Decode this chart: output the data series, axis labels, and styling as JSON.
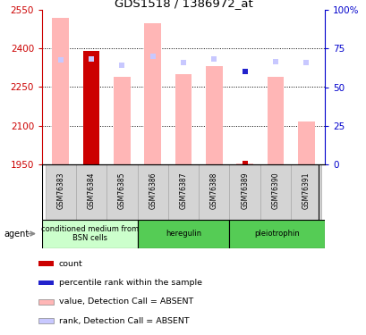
{
  "title": "GDS1518 / 1386972_at",
  "samples": [
    "GSM76383",
    "GSM76384",
    "GSM76385",
    "GSM76386",
    "GSM76387",
    "GSM76388",
    "GSM76389",
    "GSM76390",
    "GSM76391"
  ],
  "ylim": [
    1950,
    2550
  ],
  "yticks": [
    1950,
    2100,
    2250,
    2400,
    2550
  ],
  "y2lim": [
    0,
    100
  ],
  "y2ticks": [
    0,
    25,
    50,
    75,
    100
  ],
  "y2labels": [
    "0",
    "25",
    "50",
    "75",
    "100%"
  ],
  "bar_values": [
    2520,
    2390,
    2290,
    2500,
    2300,
    2330,
    1953,
    2290,
    2115
  ],
  "bar_colors": [
    "#ffb6b6",
    "#cc0000",
    "#ffb6b6",
    "#ffb6b6",
    "#ffb6b6",
    "#ffb6b6",
    "#ffb6b6",
    "#ffb6b6",
    "#ffb6b6"
  ],
  "rank_markers": [
    2355,
    2360,
    2335,
    2370,
    2345,
    2360,
    2310,
    2350,
    2345
  ],
  "rank_colors": [
    "#c8c8ff",
    "#c8c8ff",
    "#c8c8ff",
    "#c8c8ff",
    "#c8c8ff",
    "#c8c8ff",
    "#2222cc",
    "#c8c8ff",
    "#c8c8ff"
  ],
  "count_show": [
    false,
    true,
    false,
    false,
    false,
    false,
    true,
    false,
    false
  ],
  "count_value": 1953,
  "groups": [
    {
      "label": "conditioned medium from\nBSN cells",
      "start": 0,
      "end": 3,
      "color": "#ccffcc"
    },
    {
      "label": "heregulin",
      "start": 3,
      "end": 6,
      "color": "#55cc55"
    },
    {
      "label": "pleiotrophin",
      "start": 6,
      "end": 9,
      "color": "#55cc55"
    }
  ],
  "legend_items": [
    {
      "color": "#cc0000",
      "label": "count"
    },
    {
      "color": "#2222cc",
      "label": "percentile rank within the sample"
    },
    {
      "color": "#ffb6b6",
      "label": "value, Detection Call = ABSENT"
    },
    {
      "color": "#c8c8ff",
      "label": "rank, Detection Call = ABSENT"
    }
  ],
  "bar_width": 0.55,
  "base_value": 1950,
  "ylabel_color": "#cc0000",
  "y2label_color": "#0000cc",
  "grid_lines": [
    2100,
    2250,
    2400
  ],
  "fig_width": 4.1,
  "fig_height": 3.75,
  "dpi": 100
}
